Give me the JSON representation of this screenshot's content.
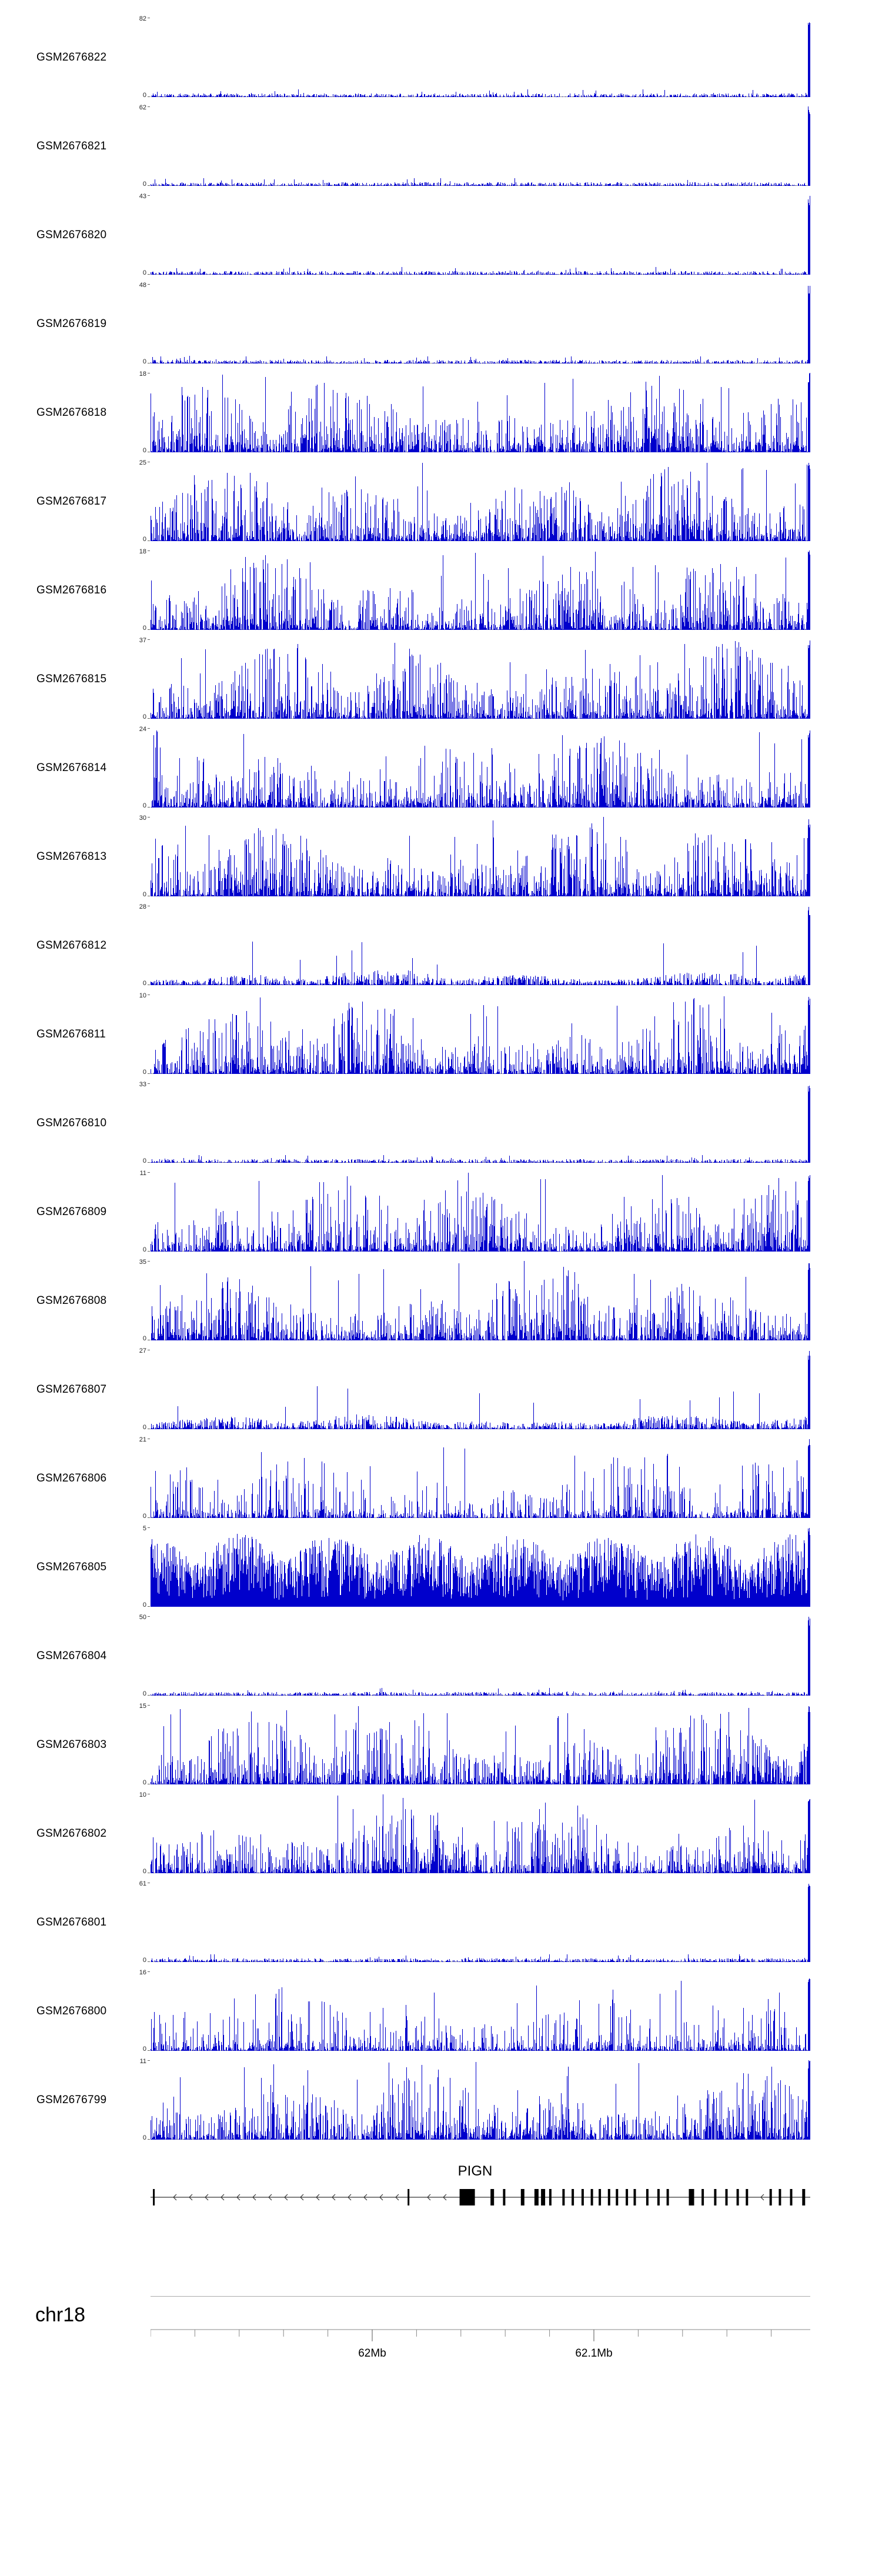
{
  "colors": {
    "signal": "#0000cc",
    "baseline": "#999999",
    "gene": "#000000",
    "rule": "#aaaaaa",
    "axis": "#888888",
    "text": "#000000"
  },
  "chart_data": {
    "type": "area",
    "subtype": "genome-browser-coverage-tracks",
    "xlabel": "chr18 position",
    "region": {
      "chromosome": "chr18",
      "x_tick_labels": [
        "62Mb",
        "62.1Mb"
      ],
      "ticks": [
        {
          "label": "62Mb",
          "frac": 0.336
        },
        {
          "label": "62.1Mb",
          "frac": 0.672
        }
      ],
      "minor_tick_step_frac": 0.0672
    },
    "tracks": [
      {
        "name": "GSM2676822",
        "ymax": 82,
        "ymin": 0,
        "profile": "sparse",
        "seed": 101
      },
      {
        "name": "GSM2676821",
        "ymax": 62,
        "ymin": 0,
        "profile": "sparse",
        "seed": 102
      },
      {
        "name": "GSM2676820",
        "ymax": 43,
        "ymin": 0,
        "profile": "sparse",
        "seed": 103
      },
      {
        "name": "GSM2676819",
        "ymax": 48,
        "ymin": 0,
        "profile": "sparse",
        "seed": 104
      },
      {
        "name": "GSM2676818",
        "ymax": 18,
        "ymin": 0,
        "profile": "dense",
        "seed": 105
      },
      {
        "name": "GSM2676817",
        "ymax": 25,
        "ymin": 0,
        "profile": "dense",
        "seed": 106
      },
      {
        "name": "GSM2676816",
        "ymax": 18,
        "ymin": 0,
        "profile": "dense",
        "seed": 107
      },
      {
        "name": "GSM2676815",
        "ymax": 37,
        "ymin": 0,
        "profile": "dense",
        "seed": 108
      },
      {
        "name": "GSM2676814",
        "ymax": 24,
        "ymin": 0,
        "profile": "dense",
        "seed": 109
      },
      {
        "name": "GSM2676813",
        "ymax": 30,
        "ymin": 0,
        "profile": "dense",
        "seed": 110
      },
      {
        "name": "GSM2676812",
        "ymax": 28,
        "ymin": 0,
        "profile": "low",
        "seed": 111
      },
      {
        "name": "GSM2676811",
        "ymax": 10,
        "ymin": 0,
        "profile": "dense",
        "seed": 112
      },
      {
        "name": "GSM2676810",
        "ymax": 33,
        "ymin": 0,
        "profile": "sparse",
        "seed": 113
      },
      {
        "name": "GSM2676809",
        "ymax": 11,
        "ymin": 0,
        "profile": "dense",
        "seed": 114
      },
      {
        "name": "GSM2676808",
        "ymax": 35,
        "ymin": 0,
        "profile": "dense",
        "seed": 115
      },
      {
        "name": "GSM2676807",
        "ymax": 27,
        "ymin": 0,
        "profile": "low",
        "seed": 116
      },
      {
        "name": "GSM2676806",
        "ymax": 21,
        "ymin": 0,
        "profile": "medium",
        "seed": 117
      },
      {
        "name": "GSM2676805",
        "ymax": 5,
        "ymin": 0,
        "profile": "solid",
        "seed": 118
      },
      {
        "name": "GSM2676804",
        "ymax": 50,
        "ymin": 0,
        "profile": "sparse",
        "seed": 119
      },
      {
        "name": "GSM2676803",
        "ymax": 15,
        "ymin": 0,
        "profile": "dense",
        "seed": 120
      },
      {
        "name": "GSM2676802",
        "ymax": 10,
        "ymin": 0,
        "profile": "dense",
        "seed": 121
      },
      {
        "name": "GSM2676801",
        "ymax": 61,
        "ymin": 0,
        "profile": "sparse",
        "seed": 122
      },
      {
        "name": "GSM2676800",
        "ymax": 16,
        "ymin": 0,
        "profile": "medium",
        "seed": 123
      },
      {
        "name": "GSM2676799",
        "ymax": 11,
        "ymin": 0,
        "profile": "dense",
        "seed": 124
      }
    ],
    "gene_track": {
      "gene_name": "PIGN",
      "strand": "minus",
      "exons": [
        {
          "f": 0.005,
          "w": 3
        },
        {
          "f": 0.391,
          "w": 3
        },
        {
          "f": 0.48,
          "w": 26
        },
        {
          "f": 0.518,
          "w": 6
        },
        {
          "f": 0.536,
          "w": 4
        },
        {
          "f": 0.564,
          "w": 6
        },
        {
          "f": 0.585,
          "w": 7
        },
        {
          "f": 0.595,
          "w": 7
        },
        {
          "f": 0.606,
          "w": 4
        },
        {
          "f": 0.626,
          "w": 4
        },
        {
          "f": 0.64,
          "w": 4
        },
        {
          "f": 0.655,
          "w": 4
        },
        {
          "f": 0.669,
          "w": 4
        },
        {
          "f": 0.681,
          "w": 4
        },
        {
          "f": 0.695,
          "w": 4
        },
        {
          "f": 0.707,
          "w": 4
        },
        {
          "f": 0.722,
          "w": 4
        },
        {
          "f": 0.734,
          "w": 4
        },
        {
          "f": 0.753,
          "w": 4
        },
        {
          "f": 0.77,
          "w": 4
        },
        {
          "f": 0.784,
          "w": 4
        },
        {
          "f": 0.82,
          "w": 9
        },
        {
          "f": 0.837,
          "w": 4
        },
        {
          "f": 0.856,
          "w": 4
        },
        {
          "f": 0.873,
          "w": 4
        },
        {
          "f": 0.89,
          "w": 4
        },
        {
          "f": 0.904,
          "w": 4
        },
        {
          "f": 0.94,
          "w": 4
        },
        {
          "f": 0.954,
          "w": 4
        },
        {
          "f": 0.971,
          "w": 4
        },
        {
          "f": 0.99,
          "w": 5
        }
      ]
    }
  }
}
